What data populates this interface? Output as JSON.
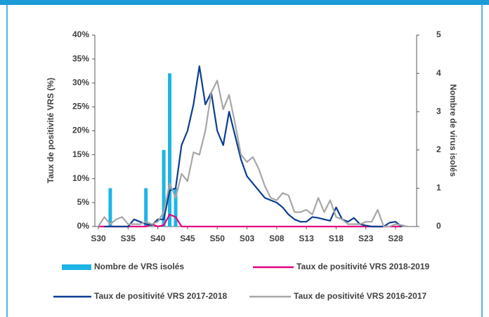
{
  "chart_data": {
    "type": "combo",
    "categories": [
      "S30",
      null,
      null,
      null,
      null,
      "S35",
      null,
      null,
      null,
      null,
      "S40",
      null,
      null,
      null,
      null,
      "S45",
      null,
      null,
      null,
      null,
      "S50",
      null,
      null,
      null,
      null,
      "S03",
      null,
      null,
      null,
      null,
      "S08",
      null,
      null,
      null,
      null,
      "S13",
      null,
      null,
      null,
      null,
      "S18",
      null,
      null,
      null,
      null,
      "S23",
      null,
      null,
      null,
      null,
      "S28",
      null,
      null
    ],
    "ylabel": "Taux de positivité VRS (%)",
    "y2label": "Nombre de virus isolés",
    "ylim": [
      0,
      40
    ],
    "yticks": [
      {
        "value": 0,
        "label": "0%"
      },
      {
        "value": 5,
        "label": "5%"
      },
      {
        "value": 10,
        "label": "10%"
      },
      {
        "value": 15,
        "label": "15%"
      },
      {
        "value": 20,
        "label": "20%"
      },
      {
        "value": 25,
        "label": "25%"
      },
      {
        "value": 30,
        "label": "30%"
      },
      {
        "value": 35,
        "label": "35%"
      },
      {
        "value": 40,
        "label": "40%"
      }
    ],
    "y2lim": [
      0,
      5
    ],
    "y2ticks": [
      0,
      1,
      2,
      3,
      4,
      5
    ],
    "series": [
      {
        "name": "Nombre de VRS isolés",
        "type": "bar",
        "axis": "y2",
        "color": "#1fb4e6",
        "values": [
          0,
          0,
          1,
          0,
          0,
          0,
          0,
          0,
          1,
          0,
          0,
          2,
          4,
          1,
          0,
          0,
          0,
          0,
          0,
          0,
          0,
          0,
          0,
          0,
          0,
          0,
          0,
          0,
          0,
          0,
          0,
          0,
          0,
          0,
          0,
          0,
          0,
          0,
          0,
          0,
          0,
          0,
          0,
          0,
          0,
          0,
          0,
          0,
          0,
          0,
          0,
          0,
          0
        ]
      },
      {
        "name": "Taux de positivité VRS 2018-2019",
        "type": "line",
        "color": "#e6007e",
        "values": [
          0,
          0,
          0,
          0,
          0,
          0,
          0,
          0,
          0,
          0.5,
          0,
          0.3,
          2.5,
          2,
          0,
          0,
          0,
          0,
          0,
          0,
          0,
          0,
          0,
          0,
          0,
          0,
          0,
          0,
          0,
          0,
          0,
          0,
          0,
          0,
          0,
          0,
          0,
          0,
          0,
          0,
          0,
          0,
          0,
          0,
          0,
          0,
          0,
          0,
          0,
          0,
          0,
          0,
          null
        ]
      },
      {
        "name": "Taux de positivité VRS 2017-2018",
        "type": "line",
        "color": "#0b3d91",
        "values": [
          null,
          0,
          0,
          0,
          0,
          0,
          1.5,
          1,
          0.5,
          0.3,
          1.5,
          1.5,
          7.5,
          8,
          17,
          20,
          25.5,
          33.5,
          25.5,
          28,
          20,
          17,
          24,
          19,
          14,
          10.5,
          9,
          7.5,
          6,
          5.5,
          5,
          4,
          2.5,
          1.5,
          1,
          1,
          2,
          1.8,
          1.5,
          1.2,
          4,
          1.5,
          1,
          1.8,
          0.5,
          0.2,
          0,
          0,
          0,
          0.8,
          1,
          0,
          null
        ]
      },
      {
        "name": "Taux de positivité VRS 2016-2017",
        "type": "line",
        "color": "#a6a6a6",
        "values": [
          0,
          2,
          0.5,
          1.5,
          2,
          0.5,
          0.5,
          0.5,
          1,
          0.5,
          1,
          3,
          9,
          6,
          11,
          9.5,
          15.5,
          15,
          20,
          28,
          30.5,
          24.5,
          27.5,
          21.5,
          15,
          13.5,
          14.5,
          12,
          8.5,
          6,
          5.5,
          7,
          6.5,
          3,
          3,
          3.5,
          2.5,
          6,
          3,
          5.5,
          2,
          1.5,
          0.5,
          0.5,
          0.5,
          1,
          1,
          3.5,
          0,
          0,
          0.5,
          0.3,
          0
        ]
      }
    ]
  }
}
